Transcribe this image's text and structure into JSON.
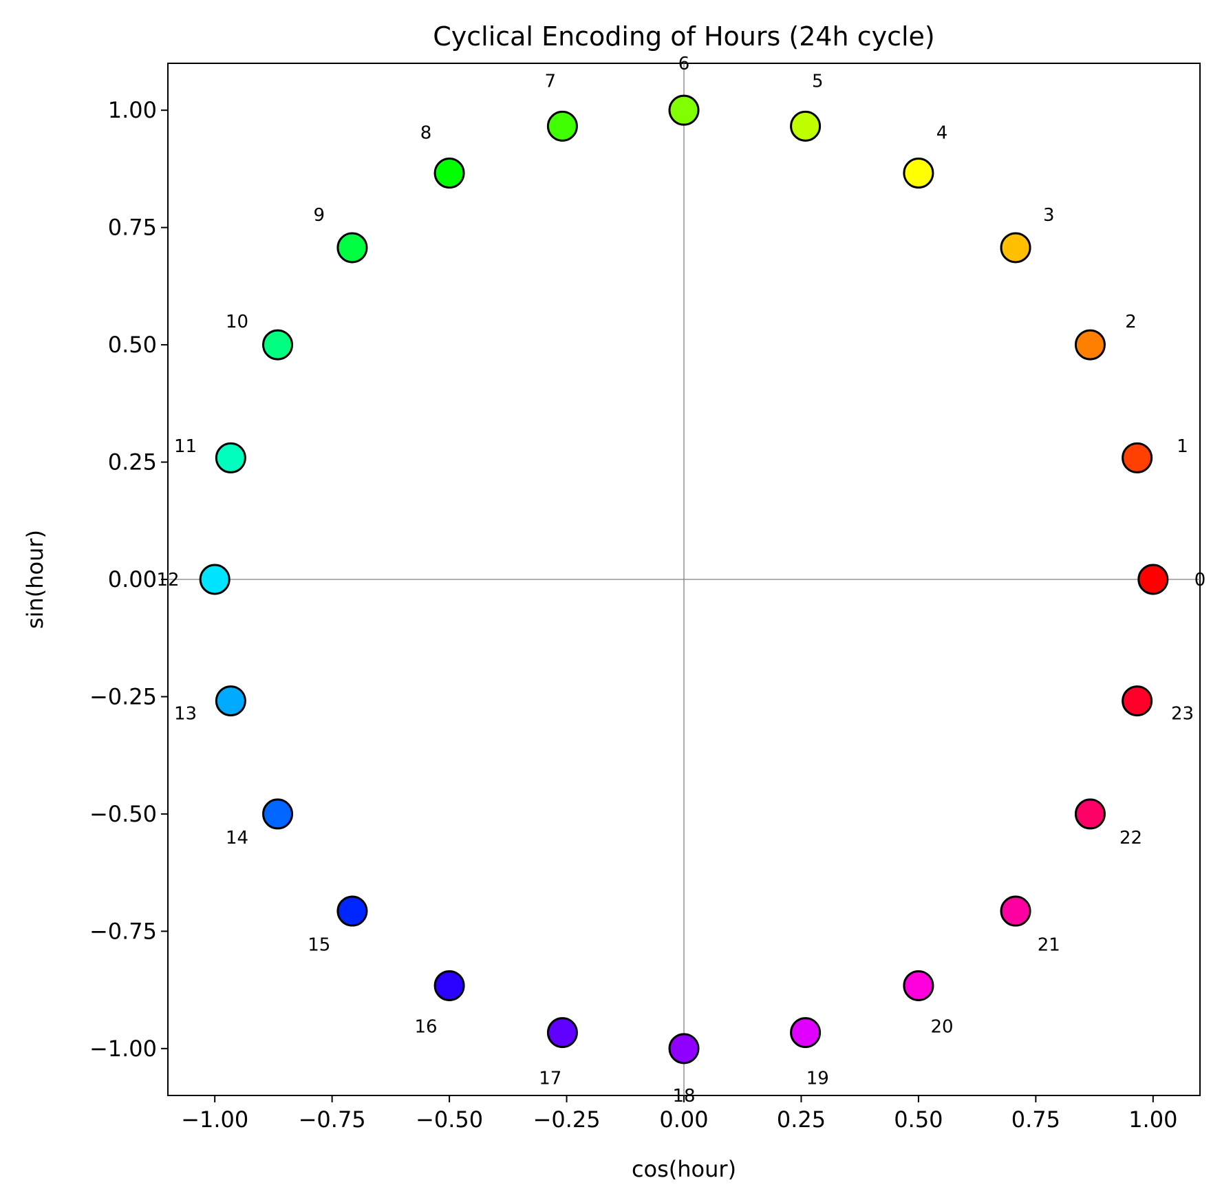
{
  "chart_data": {
    "type": "scatter",
    "title": "Cyclical Encoding of Hours (24h cycle)",
    "xlabel": "cos(hour)",
    "ylabel": "sin(hour)",
    "xlim": [
      -1.1,
      1.1
    ],
    "ylim": [
      -1.1,
      1.1
    ],
    "xticks": [
      -1.0,
      -0.75,
      -0.5,
      -0.25,
      0.0,
      0.25,
      0.5,
      0.75,
      1.0
    ],
    "yticks": [
      -1.0,
      -0.75,
      -0.5,
      -0.25,
      0.0,
      0.25,
      0.5,
      0.75,
      1.0
    ],
    "xtick_labels": [
      "−1.00",
      "−0.75",
      "−0.50",
      "−0.25",
      "0.00",
      "0.25",
      "0.50",
      "0.75",
      "1.00"
    ],
    "ytick_labels": [
      "−1.00",
      "−0.75",
      "−0.50",
      "−0.25",
      "0.00",
      "0.25",
      "0.50",
      "0.75",
      "1.00"
    ],
    "grid": false,
    "reference_lines": [
      "x=0",
      "y=0"
    ],
    "points": [
      {
        "label": "0",
        "x": 1.0,
        "y": 0.0,
        "color": "#ff0000"
      },
      {
        "label": "1",
        "x": 0.966,
        "y": 0.259,
        "color": "#ff4000"
      },
      {
        "label": "2",
        "x": 0.866,
        "y": 0.5,
        "color": "#ff8000"
      },
      {
        "label": "3",
        "x": 0.707,
        "y": 0.707,
        "color": "#ffbf00"
      },
      {
        "label": "4",
        "x": 0.5,
        "y": 0.866,
        "color": "#ffff00"
      },
      {
        "label": "5",
        "x": 0.259,
        "y": 0.966,
        "color": "#bfff00"
      },
      {
        "label": "6",
        "x": 0.0,
        "y": 1.0,
        "color": "#80ff00"
      },
      {
        "label": "7",
        "x": -0.259,
        "y": 0.966,
        "color": "#40ff00"
      },
      {
        "label": "8",
        "x": -0.5,
        "y": 0.866,
        "color": "#00ff00"
      },
      {
        "label": "9",
        "x": -0.707,
        "y": 0.707,
        "color": "#00ff40"
      },
      {
        "label": "10",
        "x": -0.866,
        "y": 0.5,
        "color": "#00ff80"
      },
      {
        "label": "11",
        "x": -0.966,
        "y": 0.259,
        "color": "#00ffbf"
      },
      {
        "label": "12",
        "x": -1.0,
        "y": 0.0,
        "color": "#00e5ff"
      },
      {
        "label": "13",
        "x": -0.966,
        "y": -0.259,
        "color": "#00aaff"
      },
      {
        "label": "14",
        "x": -0.866,
        "y": -0.5,
        "color": "#0066ff"
      },
      {
        "label": "15",
        "x": -0.707,
        "y": -0.707,
        "color": "#0026ff"
      },
      {
        "label": "16",
        "x": -0.5,
        "y": -0.866,
        "color": "#2a00ff"
      },
      {
        "label": "17",
        "x": -0.259,
        "y": -0.966,
        "color": "#6000ff"
      },
      {
        "label": "18",
        "x": 0.0,
        "y": -1.0,
        "color": "#9000ff"
      },
      {
        "label": "19",
        "x": 0.259,
        "y": -0.966,
        "color": "#e000ff"
      },
      {
        "label": "20",
        "x": 0.5,
        "y": -0.866,
        "color": "#ff00dd"
      },
      {
        "label": "21",
        "x": 0.707,
        "y": -0.707,
        "color": "#ff00a0"
      },
      {
        "label": "22",
        "x": 0.866,
        "y": -0.5,
        "color": "#ff0066"
      },
      {
        "label": "23",
        "x": 0.966,
        "y": -0.259,
        "color": "#ff0028"
      }
    ]
  }
}
